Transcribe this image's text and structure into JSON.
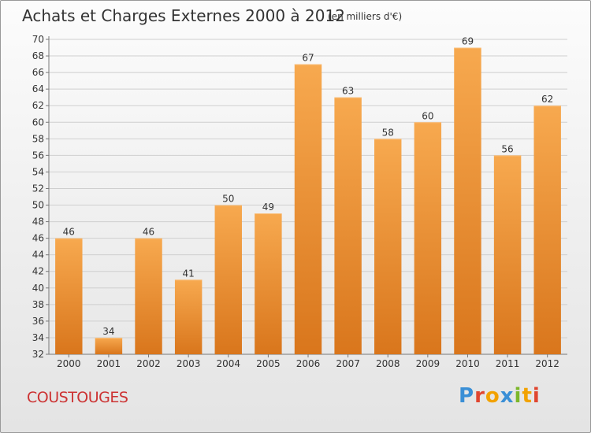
{
  "header": {
    "title": "Achats et Charges Externes 2000 à 2012",
    "subtitle": "(en milliers d'€)"
  },
  "footer": {
    "commune": "COUSTOUGES",
    "logo_text": "Proxiti"
  },
  "colors": {
    "bar_top": "#f7a94f",
    "bar_bottom": "#d9761c",
    "commune_text": "#cc3333",
    "logo_letters": [
      "#3a8fd6",
      "#e0452f",
      "#f2a200",
      "#3a8fd6",
      "#7cb72a",
      "#f2a200",
      "#e0452f"
    ]
  },
  "chart_data": {
    "type": "bar",
    "categories": [
      "2000",
      "2001",
      "2002",
      "2003",
      "2004",
      "2005",
      "2006",
      "2007",
      "2008",
      "2009",
      "2010",
      "2011",
      "2012"
    ],
    "values": [
      46,
      34,
      46,
      41,
      50,
      49,
      67,
      63,
      58,
      60,
      69,
      56,
      62
    ],
    "title": "Achats et Charges Externes 2000 à 2012",
    "subtitle": "(en milliers d'€)",
    "xlabel": "",
    "ylabel": "",
    "ylim": [
      32,
      70
    ],
    "yticks": [
      32,
      34,
      36,
      38,
      40,
      42,
      44,
      46,
      48,
      50,
      52,
      54,
      56,
      58,
      60,
      62,
      64,
      66,
      68,
      70
    ],
    "grid": true,
    "data_labels": true
  }
}
